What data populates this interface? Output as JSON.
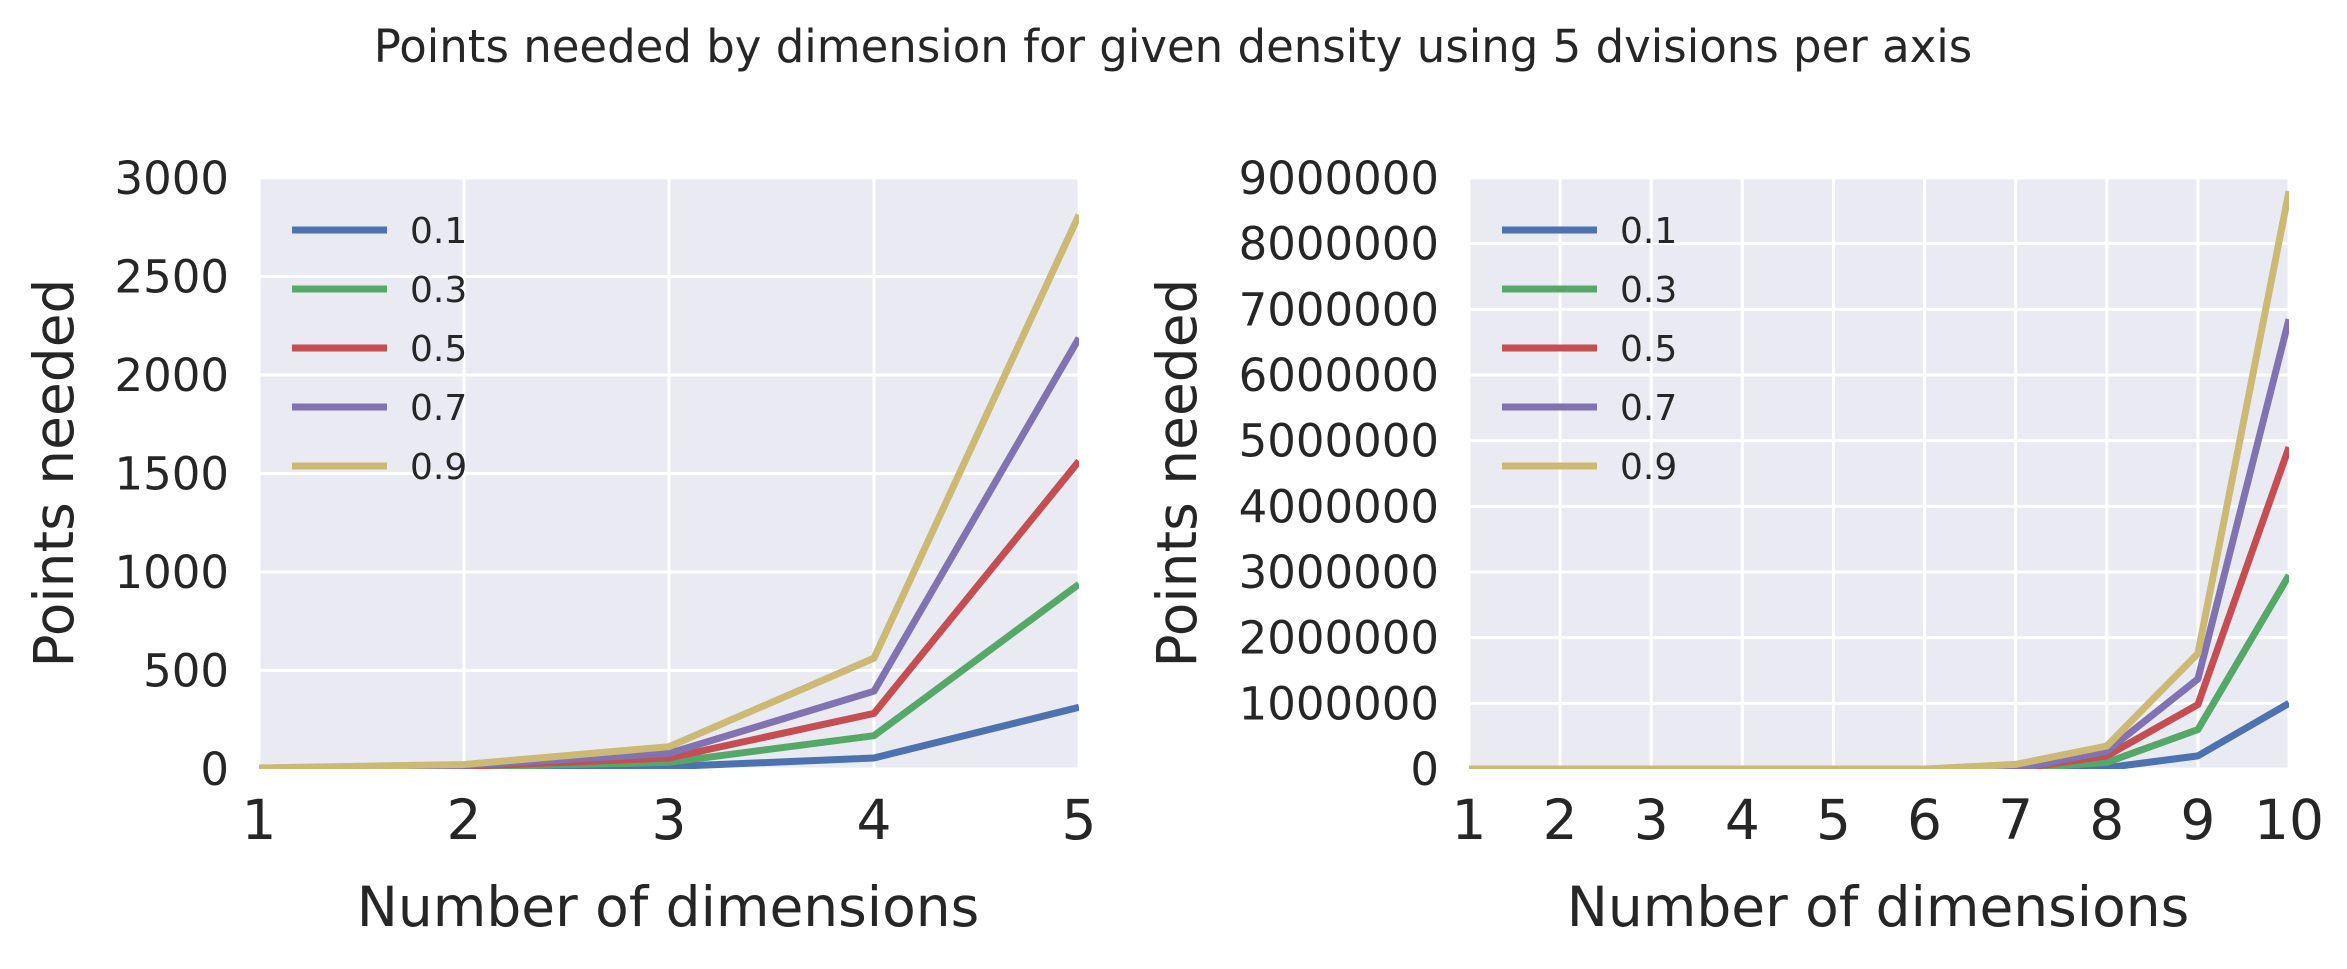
{
  "figure": {
    "title": "Points needed by dimension for given density using 5 dvisions per axis"
  },
  "colors": {
    "axes_bg": "#eaeaf2",
    "grid": "#ffffff",
    "series": [
      "#4c72b0",
      "#55a868",
      "#c44e52",
      "#8172b2",
      "#ccb974"
    ]
  },
  "chart_data": [
    {
      "type": "line",
      "title": "",
      "xlabel": "Number of dimensions",
      "ylabel": "Points needed",
      "xlim": [
        1,
        5
      ],
      "ylim": [
        0,
        3000
      ],
      "grid": true,
      "legend_position": "top-left",
      "x": [
        1,
        2,
        3,
        4,
        5
      ],
      "x_ticks": [
        "1",
        "2",
        "3",
        "4",
        "5"
      ],
      "y_ticks": [
        "0",
        "500",
        "1000",
        "1500",
        "2000",
        "2500",
        "3000"
      ],
      "y_tick_values": [
        0,
        500,
        1000,
        1500,
        2000,
        2500,
        3000
      ],
      "series": [
        {
          "name": "0.1",
          "values": [
            1,
            4,
            12,
            56,
            313
          ]
        },
        {
          "name": "0.3",
          "values": [
            2,
            9,
            34,
            169,
            938
          ]
        },
        {
          "name": "0.5",
          "values": [
            3,
            13,
            56,
            282,
            1563
          ]
        },
        {
          "name": "0.7",
          "values": [
            4,
            18,
            79,
            395,
            2188
          ]
        },
        {
          "name": "0.9",
          "values": [
            5,
            23,
            113,
            563,
            2813
          ]
        }
      ]
    },
    {
      "type": "line",
      "title": "",
      "xlabel": "Number of dimensions",
      "ylabel": "Points needed",
      "xlim": [
        1,
        10
      ],
      "ylim": [
        0,
        9000000
      ],
      "grid": true,
      "legend_position": "top-left",
      "x": [
        1,
        2,
        3,
        4,
        5,
        6,
        7,
        8,
        9,
        10
      ],
      "x_ticks": [
        "1",
        "2",
        "3",
        "4",
        "5",
        "6",
        "7",
        "8",
        "9",
        "10"
      ],
      "y_ticks": [
        "0",
        "1000000",
        "2000000",
        "3000000",
        "4000000",
        "5000000",
        "6000000",
        "7000000",
        "8000000",
        "9000000"
      ],
      "y_tick_values": [
        0,
        1000000,
        2000000,
        3000000,
        4000000,
        5000000,
        6000000,
        7000000,
        8000000,
        9000000
      ],
      "series": [
        {
          "name": "0.1",
          "values": [
            1,
            1,
            1,
            1,
            1,
            1,
            1,
            20000,
            200000,
            1000000
          ]
        },
        {
          "name": "0.3",
          "values": [
            1,
            1,
            1,
            1,
            1,
            1,
            1,
            100000,
            600000,
            2950000
          ]
        },
        {
          "name": "0.5",
          "values": [
            1,
            1,
            1,
            1,
            1,
            1,
            1,
            200000,
            980000,
            4900000
          ]
        },
        {
          "name": "0.7",
          "values": [
            1,
            1,
            1,
            1,
            1,
            1,
            1,
            270000,
            1370000,
            6850000
          ]
        },
        {
          "name": "0.9",
          "values": [
            1,
            1,
            1,
            1,
            1,
            1,
            70000,
            350000,
            1760000,
            8800000
          ]
        }
      ]
    }
  ]
}
